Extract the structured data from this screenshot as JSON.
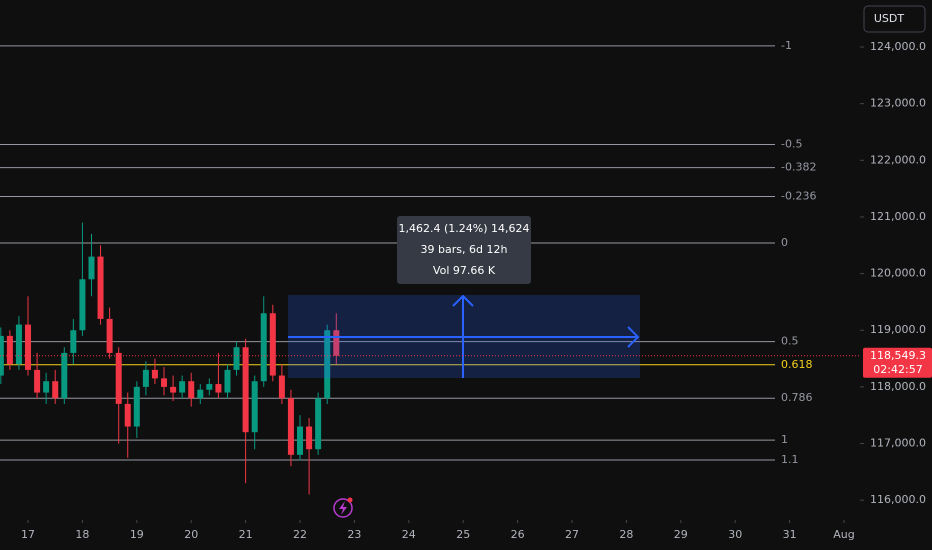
{
  "chart_data": {
    "type": "candlestick",
    "currency": "USDT",
    "up_color": "#089981",
    "down_color": "#f23645",
    "xlim": [
      16.485,
      32.294
    ],
    "ylim": [
      115650,
      124830
    ],
    "xticks": [
      17,
      18,
      19,
      20,
      21,
      22,
      23,
      24,
      25,
      26,
      27,
      28,
      29,
      30,
      31,
      {
        "value": 32,
        "label": "Aug"
      }
    ],
    "yticks": [
      {
        "value": 124000,
        "label": "124,000.0"
      },
      {
        "value": 123000,
        "label": "123,000.0"
      },
      {
        "value": 122000,
        "label": "122,000.0"
      },
      {
        "value": 121000,
        "label": "121,000.0"
      },
      {
        "value": 120000,
        "label": "120,000.0"
      },
      {
        "value": 119000,
        "label": "119,000.0"
      },
      {
        "value": 118000,
        "label": "118,000.0"
      },
      {
        "value": 117000,
        "label": "117,000.0"
      },
      {
        "value": 116000,
        "label": "116,000.0"
      }
    ],
    "x": [
      16.5,
      16.667,
      16.833,
      17,
      17.167,
      17.333,
      17.5,
      17.667,
      17.833,
      18,
      18.167,
      18.333,
      18.5,
      18.667,
      18.833,
      19,
      19.167,
      19.333,
      19.5,
      19.667,
      19.833,
      20,
      20.167,
      20.333,
      20.5,
      20.667,
      20.833,
      21,
      21.167,
      21.333,
      21.5,
      21.667,
      21.833,
      22,
      22.167,
      22.333,
      22.5,
      22.667
    ],
    "open": [
      118200,
      118900,
      118400,
      119100,
      118300,
      117900,
      118100,
      117800,
      118600,
      119000,
      119900,
      120300,
      119200,
      118600,
      117700,
      117300,
      118000,
      118300,
      118150,
      118000,
      117900,
      118100,
      117800,
      117950,
      118050,
      117900,
      118300,
      118700,
      117200,
      118100,
      119300,
      118200,
      117800,
      116800,
      117300,
      116900,
      117800,
      119000
    ],
    "high": [
      119050,
      119000,
      119250,
      119600,
      118600,
      118250,
      118300,
      118700,
      119200,
      120900,
      120700,
      120500,
      119400,
      118700,
      117900,
      118100,
      118450,
      118500,
      118350,
      118200,
      118200,
      118250,
      118050,
      118150,
      118600,
      118400,
      118800,
      118850,
      118200,
      119600,
      119450,
      118400,
      117950,
      117500,
      117450,
      117900,
      119100,
      119300
    ],
    "low": [
      118050,
      118300,
      118300,
      118200,
      117800,
      117700,
      117700,
      117700,
      118400,
      118900,
      119600,
      119100,
      118500,
      117000,
      116750,
      117100,
      117850,
      118050,
      117850,
      117750,
      117800,
      117650,
      117700,
      117850,
      117800,
      117800,
      118200,
      116300,
      116900,
      118000,
      118100,
      117700,
      116600,
      116700,
      116100,
      116800,
      117700,
      118400
    ],
    "close": [
      118900,
      118400,
      119100,
      118300,
      117900,
      118100,
      117800,
      118600,
      119000,
      119900,
      120300,
      119200,
      118600,
      117700,
      117300,
      118000,
      118300,
      118150,
      118000,
      117900,
      118100,
      117800,
      117950,
      118050,
      117900,
      118300,
      118700,
      117200,
      118100,
      119300,
      118200,
      117800,
      116800,
      117300,
      116900,
      117800,
      119000,
      118549.3
    ],
    "fib_levels": [
      {
        "ratio": -1,
        "price": 124020,
        "color": "#9598a1"
      },
      {
        "ratio": -0.5,
        "price": 122280,
        "color": "#9598a1"
      },
      {
        "ratio": -0.382,
        "price": 121870,
        "color": "#9598a1"
      },
      {
        "ratio": -0.236,
        "price": 121360,
        "color": "#9598a1"
      },
      {
        "ratio": 0,
        "price": 120540,
        "color": "#9598a1"
      },
      {
        "ratio": 0.5,
        "price": 118800,
        "color": "#9598a1"
      },
      {
        "ratio": 0.618,
        "price": 118390,
        "color": "#f5d21b"
      },
      {
        "ratio": 0.786,
        "price": 117800,
        "color": "#9598a1"
      },
      {
        "ratio": 1,
        "price": 117060,
        "color": "#9598a1"
      },
      {
        "ratio": 1.1,
        "price": 116710,
        "color": "#9598a1"
      }
    ],
    "last_price": {
      "value": 118549.3,
      "label": "118,549.3"
    },
    "countdown": "02:42:57",
    "measure": {
      "line1": "1,462.4 (1.24%) 14,624",
      "line2": "39 bars, 6d 12h",
      "line3": "Vol 97.66 K"
    }
  }
}
